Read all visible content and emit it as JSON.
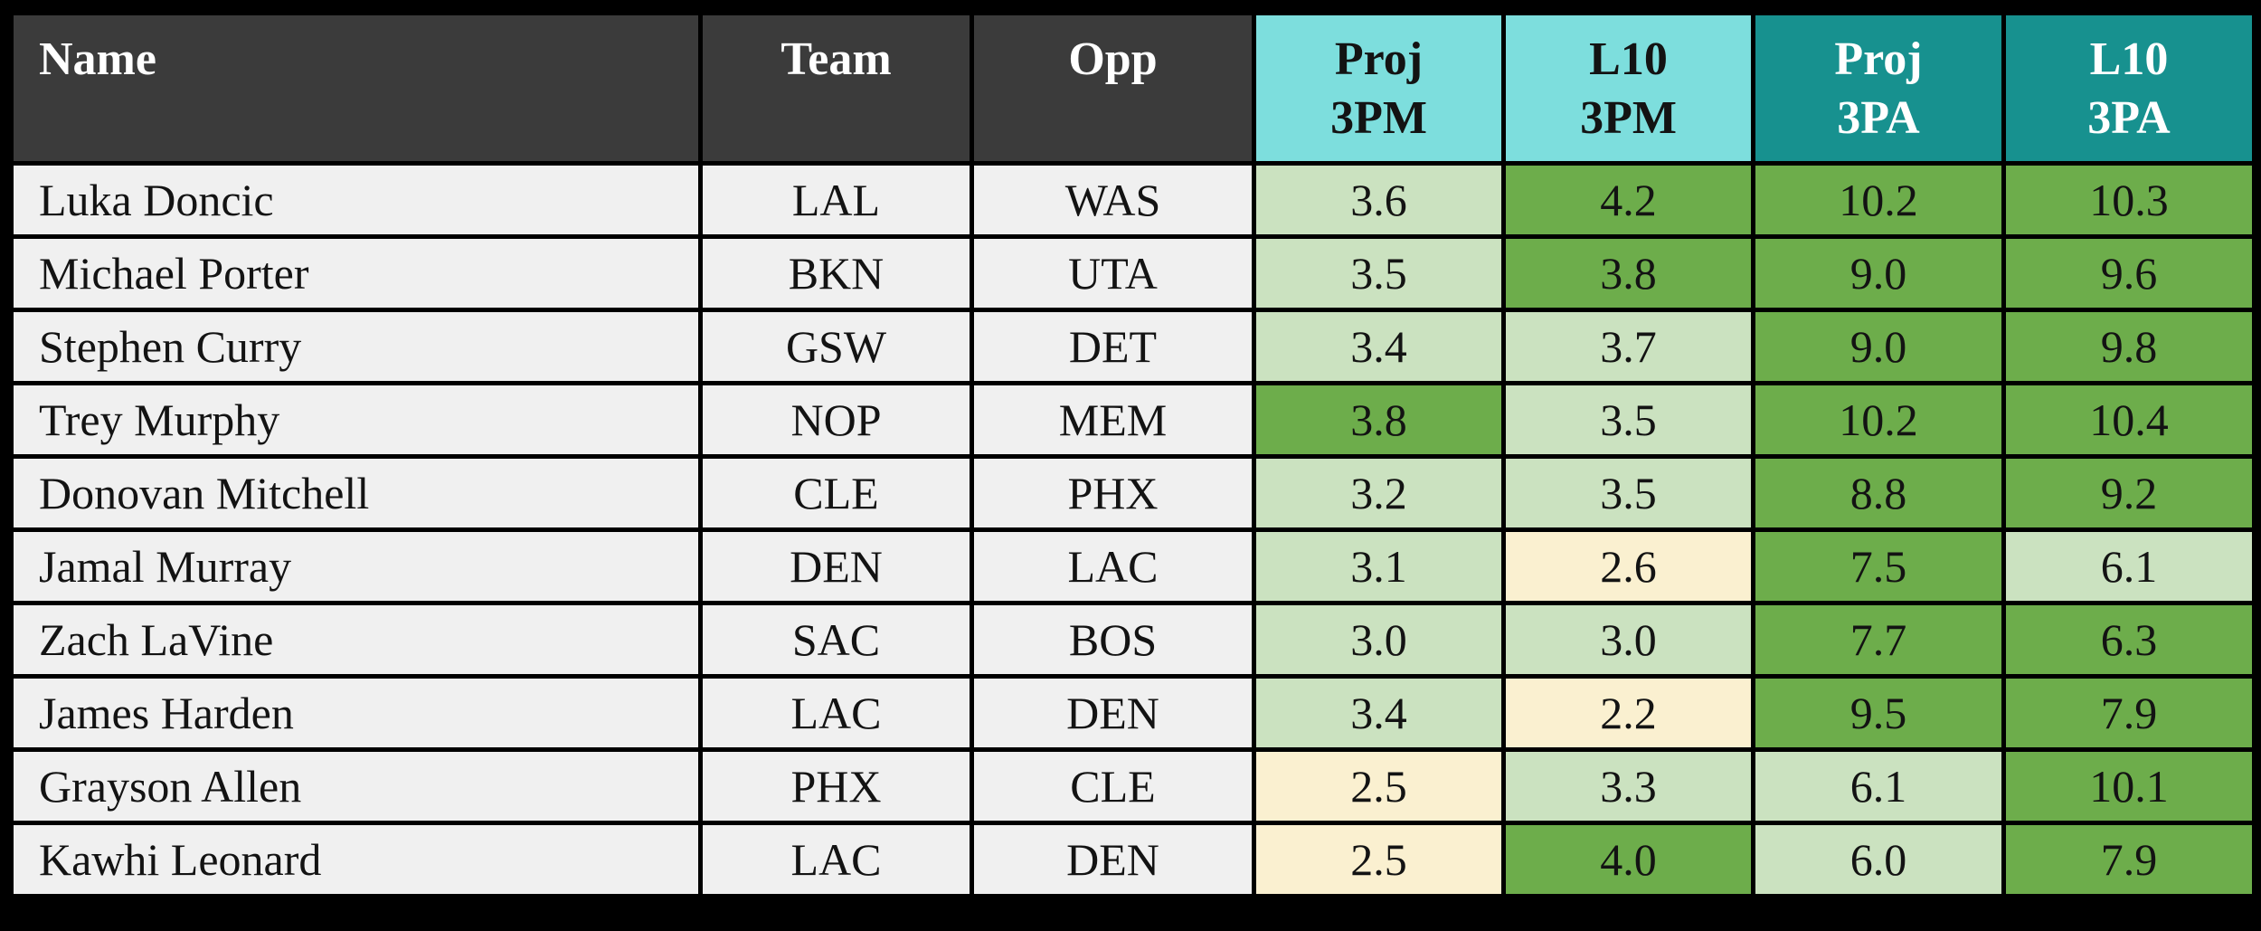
{
  "colors": {
    "border": "#000000",
    "header_dark": "#3b3b3b",
    "header_cyan": "#7ddedd",
    "header_teal": "#17918f",
    "header_text_light": "#ffffff",
    "cell_text": "#131313",
    "row_bg": "#f0f0f0",
    "cell_dark_green": "#6dad4b",
    "cell_light_green": "#cbe2c0",
    "cell_cream": "#faf0d0"
  },
  "header": {
    "name": "Name",
    "team": "Team",
    "opp": "Opp",
    "proj_3pm": {
      "line1": "Proj",
      "line2": "3PM"
    },
    "l10_3pm": {
      "line1": "L10",
      "line2": "3PM"
    },
    "proj_3pa": {
      "line1": "Proj",
      "line2": "3PA"
    },
    "l10_3pa": {
      "line1": "L10",
      "line2": "3PA"
    }
  },
  "chart_data": {
    "type": "table",
    "title": "NBA 3-point projections: projected vs last-10 3PM and 3PA",
    "columns": [
      "Name",
      "Team",
      "Opp",
      "Proj 3PM",
      "L10 3PM",
      "Proj 3PA",
      "L10 3PA"
    ],
    "shade_legend": {
      "dark": "dark green highlight (high value)",
      "light": "light green highlight (mid value)",
      "cream": "cream highlight (low value)"
    },
    "rows": [
      {
        "name": "Luka Doncic",
        "team": "LAL",
        "opp": "WAS",
        "stats": [
          {
            "v": "3.6",
            "shade": "light"
          },
          {
            "v": "4.2",
            "shade": "dark"
          },
          {
            "v": "10.2",
            "shade": "dark"
          },
          {
            "v": "10.3",
            "shade": "dark"
          }
        ]
      },
      {
        "name": "Michael Porter",
        "team": "BKN",
        "opp": "UTA",
        "stats": [
          {
            "v": "3.5",
            "shade": "light"
          },
          {
            "v": "3.8",
            "shade": "dark"
          },
          {
            "v": "9.0",
            "shade": "dark"
          },
          {
            "v": "9.6",
            "shade": "dark"
          }
        ]
      },
      {
        "name": "Stephen Curry",
        "team": "GSW",
        "opp": "DET",
        "stats": [
          {
            "v": "3.4",
            "shade": "light"
          },
          {
            "v": "3.7",
            "shade": "light"
          },
          {
            "v": "9.0",
            "shade": "dark"
          },
          {
            "v": "9.8",
            "shade": "dark"
          }
        ]
      },
      {
        "name": "Trey Murphy",
        "team": "NOP",
        "opp": "MEM",
        "stats": [
          {
            "v": "3.8",
            "shade": "dark"
          },
          {
            "v": "3.5",
            "shade": "light"
          },
          {
            "v": "10.2",
            "shade": "dark"
          },
          {
            "v": "10.4",
            "shade": "dark"
          }
        ]
      },
      {
        "name": "Donovan Mitchell",
        "team": "CLE",
        "opp": "PHX",
        "stats": [
          {
            "v": "3.2",
            "shade": "light"
          },
          {
            "v": "3.5",
            "shade": "light"
          },
          {
            "v": "8.8",
            "shade": "dark"
          },
          {
            "v": "9.2",
            "shade": "dark"
          }
        ]
      },
      {
        "name": "Jamal Murray",
        "team": "DEN",
        "opp": "LAC",
        "stats": [
          {
            "v": "3.1",
            "shade": "light"
          },
          {
            "v": "2.6",
            "shade": "cream"
          },
          {
            "v": "7.5",
            "shade": "dark"
          },
          {
            "v": "6.1",
            "shade": "light"
          }
        ]
      },
      {
        "name": "Zach LaVine",
        "team": "SAC",
        "opp": "BOS",
        "stats": [
          {
            "v": "3.0",
            "shade": "light"
          },
          {
            "v": "3.0",
            "shade": "light"
          },
          {
            "v": "7.7",
            "shade": "dark"
          },
          {
            "v": "6.3",
            "shade": "dark"
          }
        ]
      },
      {
        "name": "James Harden",
        "team": "LAC",
        "opp": "DEN",
        "stats": [
          {
            "v": "3.4",
            "shade": "light"
          },
          {
            "v": "2.2",
            "shade": "cream"
          },
          {
            "v": "9.5",
            "shade": "dark"
          },
          {
            "v": "7.9",
            "shade": "dark"
          }
        ]
      },
      {
        "name": "Grayson Allen",
        "team": "PHX",
        "opp": "CLE",
        "stats": [
          {
            "v": "2.5",
            "shade": "cream"
          },
          {
            "v": "3.3",
            "shade": "light"
          },
          {
            "v": "6.1",
            "shade": "light"
          },
          {
            "v": "10.1",
            "shade": "dark"
          }
        ]
      },
      {
        "name": "Kawhi Leonard",
        "team": "LAC",
        "opp": "DEN",
        "stats": [
          {
            "v": "2.5",
            "shade": "cream"
          },
          {
            "v": "4.0",
            "shade": "dark"
          },
          {
            "v": "6.0",
            "shade": "light"
          },
          {
            "v": "7.9",
            "shade": "dark"
          }
        ]
      }
    ]
  }
}
